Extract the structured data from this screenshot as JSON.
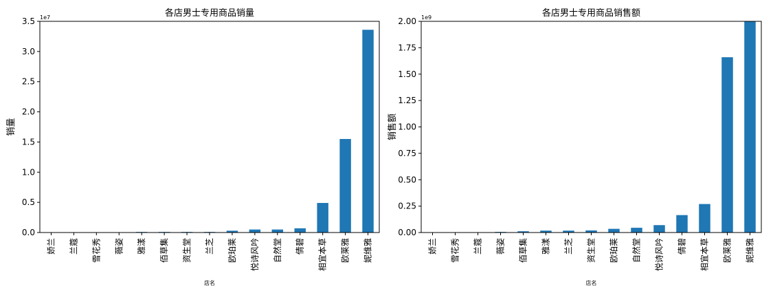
{
  "chart_data": [
    {
      "type": "bar",
      "title": "各店男士专用商品销量",
      "xlabel": "店名",
      "ylabel": "销量",
      "scale_label": "1e7",
      "ylim": [
        0,
        3.5
      ],
      "yticks": [
        "0.0",
        "0.5",
        "1.0",
        "1.5",
        "2.0",
        "2.5",
        "3.0",
        "3.5"
      ],
      "color": "#1f77b4",
      "grid": false,
      "categories": [
        "娇兰",
        "兰蔻",
        "雪花秀",
        "薇姿",
        "雅漾",
        "佰草集",
        "资生堂",
        "兰芝",
        "欧珀莱",
        "悦诗风吟",
        "自然堂",
        "倩碧",
        "相宜本草",
        "欧莱雅",
        "妮维雅"
      ],
      "values": [
        0.0,
        0.0,
        0.0,
        0.0,
        0.01,
        0.01,
        0.01,
        0.01,
        0.03,
        0.05,
        0.05,
        0.07,
        0.49,
        1.55,
        3.36
      ]
    },
    {
      "type": "bar",
      "title": "各店男士专用商品销售额",
      "xlabel": "店名",
      "ylabel": "销售额",
      "scale_label": "1e9",
      "ylim": [
        0,
        2.0
      ],
      "yticks": [
        "0.00",
        "0.25",
        "0.50",
        "0.75",
        "1.00",
        "1.25",
        "1.50",
        "1.75",
        "2.00"
      ],
      "color": "#1f77b4",
      "grid": false,
      "categories": [
        "娇兰",
        "雪花秀",
        "兰蔻",
        "薇姿",
        "佰草集",
        "雅漾",
        "兰芝",
        "资生堂",
        "欧珀莱",
        "自然堂",
        "悦诗风吟",
        "倩碧",
        "相宜本草",
        "欧莱雅",
        "妮维雅"
      ],
      "values": [
        0.0,
        0.0,
        0.0,
        0.006,
        0.012,
        0.018,
        0.018,
        0.02,
        0.035,
        0.045,
        0.07,
        0.165,
        0.27,
        1.66,
        2.0
      ]
    }
  ]
}
